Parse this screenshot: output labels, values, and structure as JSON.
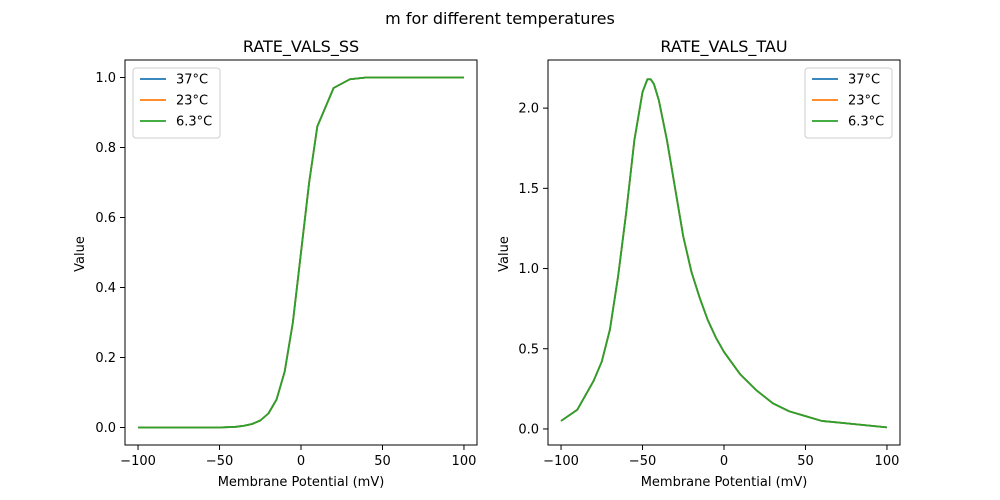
{
  "figure": {
    "suptitle": "m for different temperatures"
  },
  "chart_data": [
    {
      "type": "line",
      "title": "RATE_VALS_SS",
      "xlabel": "Membrane Potential (mV)",
      "ylabel": "Value",
      "xlim": [
        -108,
        108
      ],
      "ylim": [
        -0.05,
        1.05
      ],
      "xticks": [
        -100,
        -50,
        0,
        50,
        100
      ],
      "xtick_labels": [
        "−100",
        "−50",
        "0",
        "50",
        "100"
      ],
      "yticks": [
        0.0,
        0.2,
        0.4,
        0.6,
        0.8,
        1.0
      ],
      "ytick_labels": [
        "0.0",
        "0.2",
        "0.4",
        "0.6",
        "0.8",
        "1.0"
      ],
      "legend": "top-left",
      "grid": false,
      "series": [
        {
          "name": "37°C",
          "color": "#1f77b4",
          "x": [
            -100,
            -90,
            -80,
            -70,
            -60,
            -50,
            -40,
            -35,
            -30,
            -25,
            -20,
            -15,
            -10,
            -5,
            0,
            5,
            10,
            20,
            30,
            40,
            50,
            60,
            70,
            80,
            90,
            100
          ],
          "y": [
            0.0,
            0.0,
            0.0,
            0.0,
            0.0,
            0.0,
            0.002,
            0.005,
            0.01,
            0.02,
            0.04,
            0.08,
            0.16,
            0.3,
            0.5,
            0.7,
            0.86,
            0.97,
            0.995,
            1.0,
            1.0,
            1.0,
            1.0,
            1.0,
            1.0,
            1.0
          ]
        },
        {
          "name": "23°C",
          "color": "#ff7f0e",
          "x": [
            -100,
            -90,
            -80,
            -70,
            -60,
            -50,
            -40,
            -35,
            -30,
            -25,
            -20,
            -15,
            -10,
            -5,
            0,
            5,
            10,
            20,
            30,
            40,
            50,
            60,
            70,
            80,
            90,
            100
          ],
          "y": [
            0.0,
            0.0,
            0.0,
            0.0,
            0.0,
            0.0,
            0.002,
            0.005,
            0.01,
            0.02,
            0.04,
            0.08,
            0.16,
            0.3,
            0.5,
            0.7,
            0.86,
            0.97,
            0.995,
            1.0,
            1.0,
            1.0,
            1.0,
            1.0,
            1.0,
            1.0
          ]
        },
        {
          "name": "6.3°C",
          "color": "#2ca02c",
          "x": [
            -100,
            -90,
            -80,
            -70,
            -60,
            -50,
            -40,
            -35,
            -30,
            -25,
            -20,
            -15,
            -10,
            -5,
            0,
            5,
            10,
            20,
            30,
            40,
            50,
            60,
            70,
            80,
            90,
            100
          ],
          "y": [
            0.0,
            0.0,
            0.0,
            0.0,
            0.0,
            0.0,
            0.002,
            0.005,
            0.01,
            0.02,
            0.04,
            0.08,
            0.16,
            0.3,
            0.5,
            0.7,
            0.86,
            0.97,
            0.995,
            1.0,
            1.0,
            1.0,
            1.0,
            1.0,
            1.0,
            1.0
          ]
        }
      ]
    },
    {
      "type": "line",
      "title": "RATE_VALS_TAU",
      "xlabel": "Membrane Potential (mV)",
      "ylabel": "Value",
      "xlim": [
        -108,
        108
      ],
      "ylim": [
        -0.1,
        2.3
      ],
      "xticks": [
        -100,
        -50,
        0,
        50,
        100
      ],
      "xtick_labels": [
        "−100",
        "−50",
        "0",
        "50",
        "100"
      ],
      "yticks": [
        0.0,
        0.5,
        1.0,
        1.5,
        2.0
      ],
      "ytick_labels": [
        "0.0",
        "0.5",
        "1.0",
        "1.5",
        "2.0"
      ],
      "legend": "top-right",
      "grid": false,
      "series": [
        {
          "name": "37°C",
          "color": "#1f77b4",
          "x": [
            -100,
            -90,
            -80,
            -75,
            -70,
            -65,
            -60,
            -55,
            -50,
            -47,
            -45,
            -43,
            -40,
            -35,
            -30,
            -25,
            -20,
            -15,
            -10,
            -5,
            0,
            10,
            20,
            30,
            40,
            50,
            60,
            70,
            80,
            90,
            100
          ],
          "y": [
            0.05,
            0.12,
            0.3,
            0.42,
            0.62,
            0.95,
            1.35,
            1.8,
            2.1,
            2.18,
            2.18,
            2.15,
            2.05,
            1.8,
            1.5,
            1.2,
            0.98,
            0.82,
            0.68,
            0.57,
            0.48,
            0.34,
            0.24,
            0.16,
            0.11,
            0.08,
            0.05,
            0.04,
            0.03,
            0.02,
            0.01
          ]
        },
        {
          "name": "23°C",
          "color": "#ff7f0e",
          "x": [
            -100,
            -90,
            -80,
            -75,
            -70,
            -65,
            -60,
            -55,
            -50,
            -47,
            -45,
            -43,
            -40,
            -35,
            -30,
            -25,
            -20,
            -15,
            -10,
            -5,
            0,
            10,
            20,
            30,
            40,
            50,
            60,
            70,
            80,
            90,
            100
          ],
          "y": [
            0.05,
            0.12,
            0.3,
            0.42,
            0.62,
            0.95,
            1.35,
            1.8,
            2.1,
            2.18,
            2.18,
            2.15,
            2.05,
            1.8,
            1.5,
            1.2,
            0.98,
            0.82,
            0.68,
            0.57,
            0.48,
            0.34,
            0.24,
            0.16,
            0.11,
            0.08,
            0.05,
            0.04,
            0.03,
            0.02,
            0.01
          ]
        },
        {
          "name": "6.3°C",
          "color": "#2ca02c",
          "x": [
            -100,
            -90,
            -80,
            -75,
            -70,
            -65,
            -60,
            -55,
            -50,
            -47,
            -45,
            -43,
            -40,
            -35,
            -30,
            -25,
            -20,
            -15,
            -10,
            -5,
            0,
            10,
            20,
            30,
            40,
            50,
            60,
            70,
            80,
            90,
            100
          ],
          "y": [
            0.05,
            0.12,
            0.3,
            0.42,
            0.62,
            0.95,
            1.35,
            1.8,
            2.1,
            2.18,
            2.18,
            2.15,
            2.05,
            1.8,
            1.5,
            1.2,
            0.98,
            0.82,
            0.68,
            0.57,
            0.48,
            0.34,
            0.24,
            0.16,
            0.11,
            0.08,
            0.05,
            0.04,
            0.03,
            0.02,
            0.01
          ]
        }
      ]
    }
  ]
}
